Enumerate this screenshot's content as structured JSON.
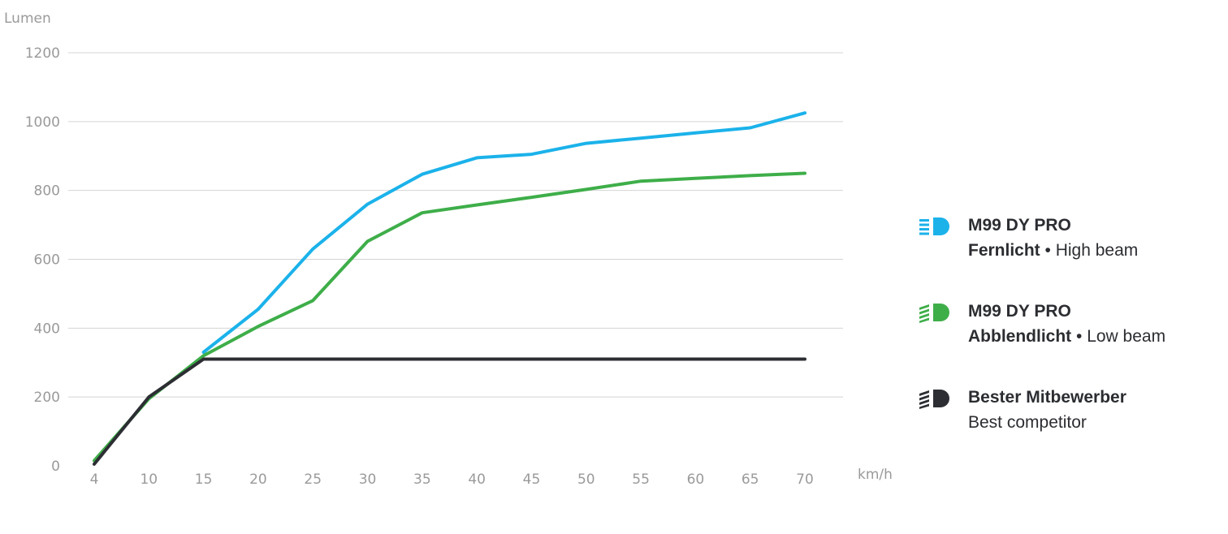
{
  "chart_data": {
    "type": "line",
    "ylabel": "Lumen",
    "xlabel": "km/h",
    "categories": [
      "4",
      "10",
      "15",
      "20",
      "25",
      "30",
      "35",
      "40",
      "45",
      "50",
      "55",
      "60",
      "65",
      "70"
    ],
    "ylim": [
      0,
      1200
    ],
    "yticks": [
      0,
      200,
      400,
      600,
      800,
      1000,
      1200
    ],
    "grid": true,
    "legend_position": "right",
    "series": [
      {
        "key": "high",
        "color": "#1bb2ea",
        "x": [
          "15",
          "20",
          "25",
          "30",
          "35",
          "40",
          "45",
          "50",
          "55",
          "60",
          "65",
          "70"
        ],
        "values": [
          330,
          455,
          630,
          760,
          847,
          895,
          905,
          937,
          952,
          967,
          982,
          1025
        ]
      },
      {
        "key": "low",
        "color": "#3eae49",
        "x": [
          "4",
          "10",
          "15",
          "20",
          "25",
          "30",
          "35",
          "40",
          "45",
          "50",
          "55",
          "60",
          "65",
          "70"
        ],
        "values": [
          15,
          195,
          320,
          405,
          480,
          652,
          735,
          758,
          780,
          803,
          827,
          835,
          843,
          850
        ]
      },
      {
        "key": "competitor",
        "color": "#2c2e33",
        "x": [
          "4",
          "10",
          "15",
          "20",
          "25",
          "30",
          "35",
          "40",
          "45",
          "50",
          "55",
          "60",
          "65",
          "70"
        ],
        "values": [
          5,
          200,
          310,
          310,
          310,
          310,
          310,
          310,
          310,
          310,
          310,
          310,
          310,
          310
        ]
      }
    ]
  },
  "legend": [
    {
      "line1": "M99 DY PRO",
      "line2_bold": "Fernlicht",
      "line2_sep": " • ",
      "line2_rest": "High beam",
      "color": "#1bb2ea",
      "icon": "high-beam-icon"
    },
    {
      "line1": "M99 DY PRO",
      "line2_bold": "Abblendlicht",
      "line2_sep": " • ",
      "line2_rest": "Low beam",
      "color": "#3eae49",
      "icon": "low-beam-icon"
    },
    {
      "line1": "Bester Mitbewerber",
      "line2_bold": "",
      "line2_sep": "",
      "line2_rest": "Best competitor",
      "color": "#2c2e33",
      "icon": "low-beam-icon"
    }
  ]
}
